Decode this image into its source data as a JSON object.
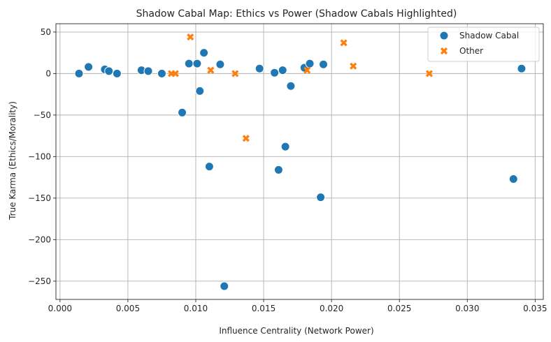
{
  "chart_data": {
    "type": "scatter",
    "title": "Shadow Cabal Map: Ethics vs Power (Shadow Cabals Highlighted)",
    "xlabel": "Influence Centrality (Network Power)",
    "ylabel": "True Karma (Ethics/Morality)",
    "xlim": [
      -0.0003,
      0.0356
    ],
    "ylim": [
      -272,
      60
    ],
    "xticks": [
      0.0,
      0.005,
      0.01,
      0.015,
      0.02,
      0.025,
      0.03,
      0.035
    ],
    "xtick_labels": [
      "0.000",
      "0.005",
      "0.010",
      "0.015",
      "0.020",
      "0.025",
      "0.030",
      "0.035"
    ],
    "yticks": [
      -250,
      -200,
      -150,
      -100,
      -50,
      0,
      50
    ],
    "ytick_labels": [
      "−250",
      "−200",
      "−150",
      "−100",
      "−50",
      "0",
      "50"
    ],
    "grid": true,
    "legend_position": "top-right",
    "series": [
      {
        "name": "Shadow Cabal",
        "marker": "circle",
        "color": "#1f77b4",
        "points": [
          [
            0.0014,
            0
          ],
          [
            0.0021,
            8
          ],
          [
            0.0033,
            5
          ],
          [
            0.0036,
            3
          ],
          [
            0.0042,
            0
          ],
          [
            0.006,
            4
          ],
          [
            0.0065,
            3
          ],
          [
            0.0075,
            0
          ],
          [
            0.009,
            -47
          ],
          [
            0.0095,
            12
          ],
          [
            0.0101,
            12
          ],
          [
            0.0103,
            -21
          ],
          [
            0.0106,
            25
          ],
          [
            0.011,
            -112
          ],
          [
            0.0118,
            11
          ],
          [
            0.0121,
            -256
          ],
          [
            0.0147,
            6
          ],
          [
            0.0158,
            1
          ],
          [
            0.0161,
            -116
          ],
          [
            0.0164,
            4
          ],
          [
            0.0166,
            -88
          ],
          [
            0.017,
            -15
          ],
          [
            0.018,
            7
          ],
          [
            0.0184,
            12
          ],
          [
            0.0192,
            -149
          ],
          [
            0.0194,
            11
          ],
          [
            0.0334,
            -127
          ],
          [
            0.034,
            6
          ]
        ]
      },
      {
        "name": "Other",
        "marker": "x",
        "color": "#ff7f0e",
        "points": [
          [
            0.0082,
            0
          ],
          [
            0.0085,
            0
          ],
          [
            0.0096,
            44
          ],
          [
            0.0111,
            4
          ],
          [
            0.0129,
            0
          ],
          [
            0.0137,
            -78
          ],
          [
            0.0182,
            4
          ],
          [
            0.0209,
            37
          ],
          [
            0.0216,
            9
          ],
          [
            0.0272,
            0
          ]
        ]
      }
    ]
  }
}
